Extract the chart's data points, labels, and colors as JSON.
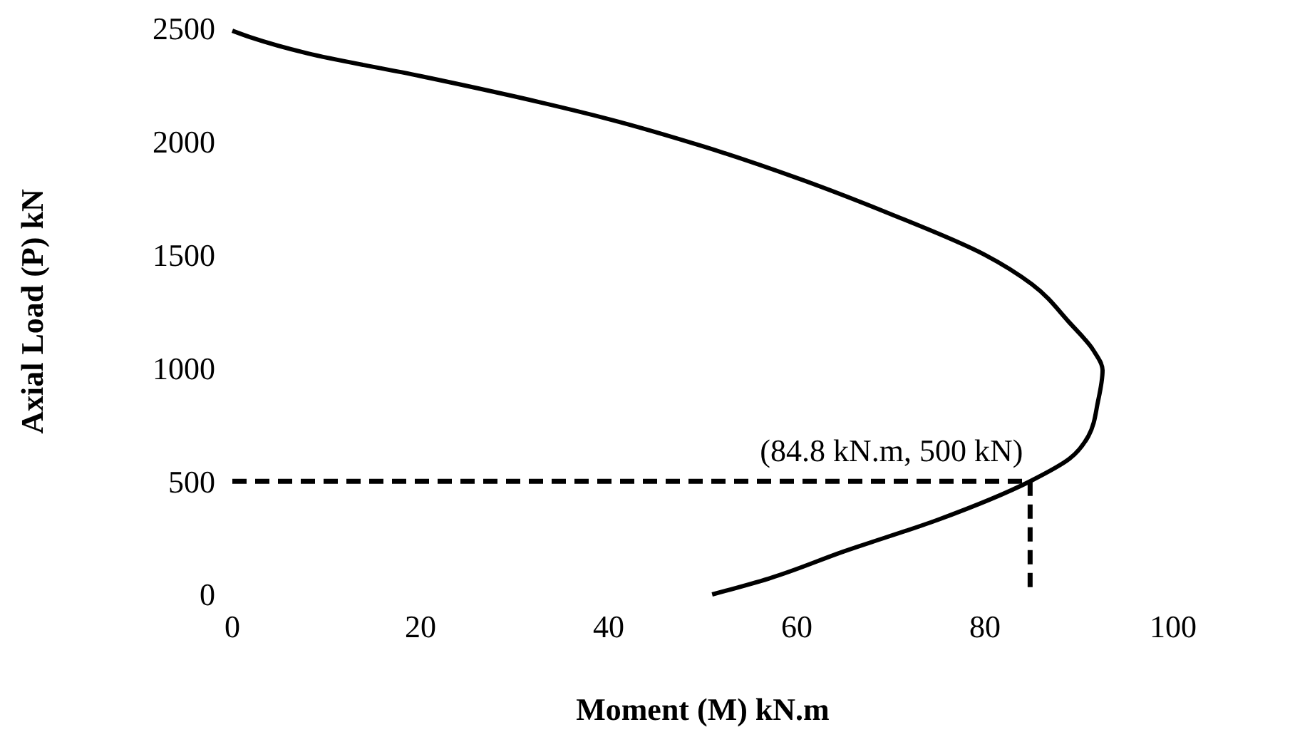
{
  "chart_data": {
    "type": "line",
    "xlabel": "Moment (M) kN.m",
    "ylabel": "Axial Load (P) kN",
    "xlim": [
      0,
      100
    ],
    "xticks": [
      0,
      20,
      40,
      60,
      80,
      100
    ],
    "ylim": [
      0,
      2500
    ],
    "yticks": [
      0,
      500,
      1000,
      1500,
      2000,
      2500
    ],
    "grid": false,
    "marker": "none",
    "series": [
      {
        "color": "#000000",
        "line_style": "solid",
        "x": [
          0,
          2,
          8,
          20,
          30,
          40,
          50,
          60,
          70,
          80,
          85,
          89,
          91.5,
          92.5,
          92,
          91,
          89,
          84.8,
          75,
          65,
          57,
          51
        ],
        "values": [
          2490,
          2460,
          2390,
          2290,
          2200,
          2100,
          1980,
          1840,
          1680,
          1500,
          1370,
          1200,
          1080,
          990,
          850,
          700,
          600,
          500,
          330,
          190,
          70,
          0
        ]
      },
      {
        "color": "#000000",
        "line_style": "dashed",
        "x": [
          0,
          84.8,
          84.8
        ],
        "values": [
          500,
          500,
          0
        ]
      }
    ],
    "annotations": [
      {
        "text": "(84.8 kN.m, 500 kN)",
        "x": 84.8,
        "y": 500
      }
    ]
  }
}
